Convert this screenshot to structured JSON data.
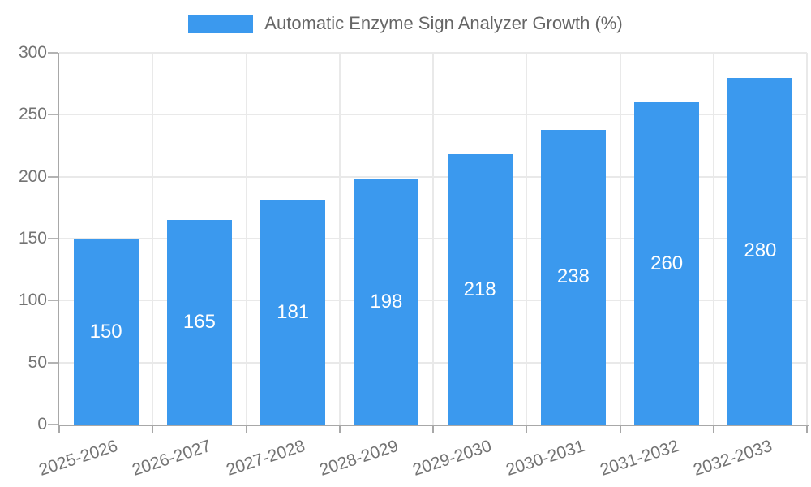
{
  "legend": {
    "label": "Automatic Enzyme Sign Analyzer Growth (%)",
    "swatch_color": "#3B99EE"
  },
  "chart_data": {
    "type": "bar",
    "title": "Automatic Enzyme Sign Analyzer Growth (%)",
    "categories": [
      "2025-2026",
      "2026-2027",
      "2027-2028",
      "2028-2029",
      "2029-2030",
      "2030-2031",
      "2031-2032",
      "2032-2033"
    ],
    "series": [
      {
        "name": "Automatic Enzyme Sign Analyzer Growth (%)",
        "values": [
          150,
          165,
          181,
          198,
          218,
          238,
          260,
          280
        ]
      }
    ],
    "values": [
      150,
      165,
      181,
      198,
      218,
      238,
      260,
      280
    ],
    "xlabel": "",
    "ylabel": "",
    "ylim": [
      0,
      300
    ],
    "yticks": [
      0,
      50,
      100,
      150,
      200,
      250,
      300
    ],
    "grid": true,
    "legend_position": "top-center",
    "bar_color": "#3B99EE",
    "bar_label_color": "#FFFFFF"
  },
  "colors": {
    "background": "#FFFFFF",
    "grid": "#E9E9E9",
    "axis": "#A8A8A8",
    "tick": "#B3B3B3",
    "axis_text": "#737373",
    "legend_text": "#666666"
  }
}
